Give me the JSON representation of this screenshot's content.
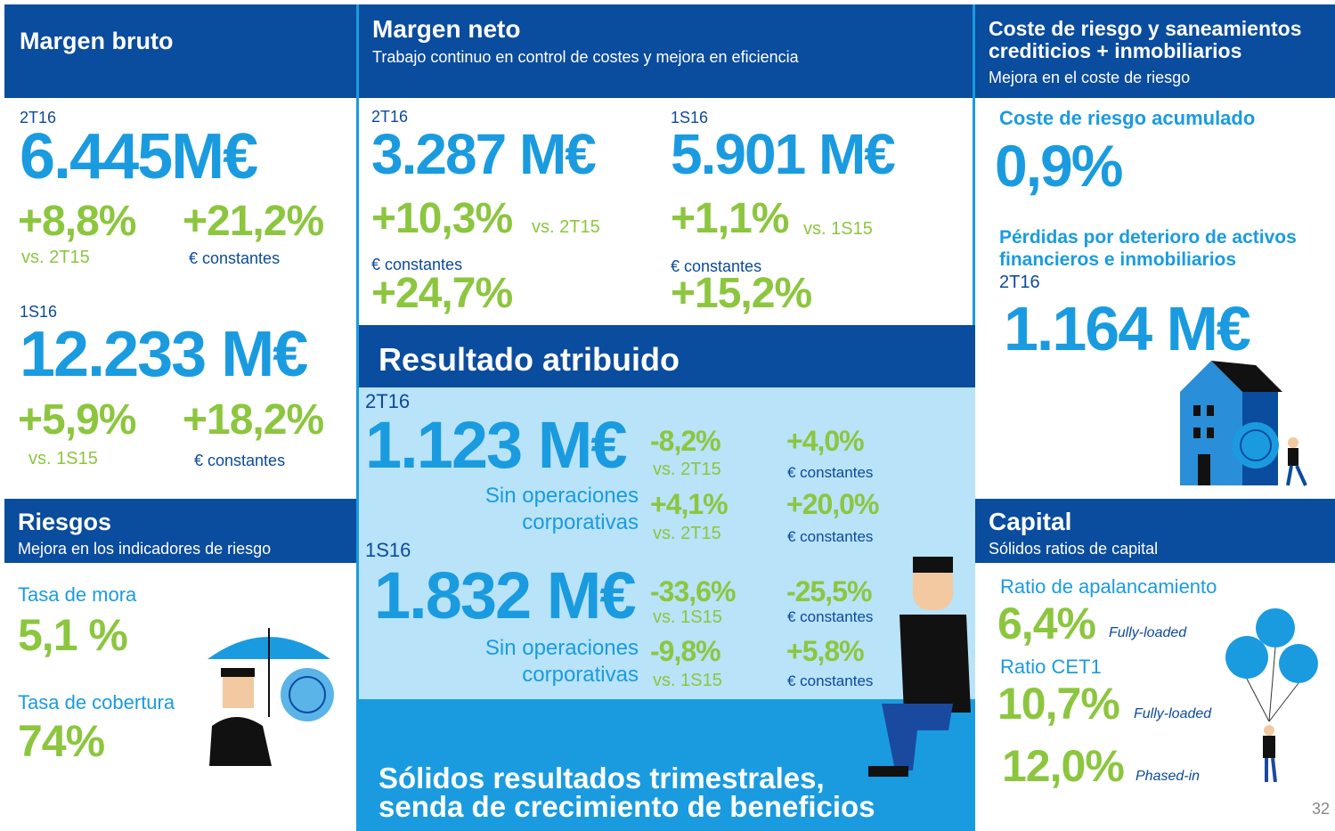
{
  "margen_bruto": {
    "title": "Margen bruto",
    "q_label": "2T16",
    "q_value": "6.445M€",
    "q_growth": "+8,8%",
    "q_vs": "vs. 2T15",
    "q_growth_const": "+21,2%",
    "q_const": "€ constantes",
    "h_label": "1S16",
    "h_value": "12.233 M€",
    "h_growth": "+5,9%",
    "h_vs": "vs. 1S15",
    "h_growth_const": "+18,2%",
    "h_const": "€ constantes"
  },
  "margen_neto": {
    "title": "Margen neto",
    "subtitle": "Trabajo continuo en control de costes y mejora en eficiencia",
    "q_label": "2T16",
    "q_value": "3.287 M€",
    "q_growth": "+10,3%",
    "q_vs": "vs. 2T15",
    "q_const": "€ constantes",
    "q_growth_const": "+24,7%",
    "h_label": "1S16",
    "h_value": "5.901 M€",
    "h_growth": "+1,1%",
    "h_vs": "vs. 1S15",
    "h_const": "€ constantes",
    "h_growth_const": "+15,2%"
  },
  "coste_riesgo": {
    "title": "Coste de riesgo y saneamientos crediticios + inmobiliarios",
    "subtitle": "Mejora en el coste de riesgo",
    "cor_label": "Coste de riesgo acumulado",
    "cor_value": "0,9%",
    "loss_label": "Pérdidas por deterioro de activos financieros e inmobiliarios",
    "loss_period": "2T16",
    "loss_value": "1.164 M€"
  },
  "resultado": {
    "title": "Resultado atribuido",
    "q_label": "2T16",
    "q_value": "1.123 M€",
    "q_growth": "-8,2%",
    "q_vs": "vs. 2T15",
    "q_growth_const": "+4,0%",
    "q_const": "€ constantes",
    "q_ex_label_1": "Sin operaciones",
    "q_ex_label_2": "corporativas",
    "q_ex_growth": "+4,1%",
    "q_ex_vs": "vs. 2T15",
    "q_ex_growth_const": "+20,0%",
    "q_ex_const": "€ constantes",
    "h_label": "1S16",
    "h_value": "1.832 M€",
    "h_growth": "-33,6%",
    "h_vs": "vs. 1S15",
    "h_growth_const": "-25,5%",
    "h_const": "€ constantes",
    "h_ex_label_1": "Sin operaciones",
    "h_ex_label_2": "corporativas",
    "h_ex_growth": "-9,8%",
    "h_ex_vs": "vs. 1S15",
    "h_ex_growth_const": "+5,8%",
    "h_ex_const": "€ constantes",
    "footer_1": "Sólidos resultados trimestrales,",
    "footer_2": "senda de crecimiento de beneficios"
  },
  "riesgos": {
    "title": "Riesgos",
    "subtitle": "Mejora en los indicadores de riesgo",
    "npl_label": "Tasa de mora",
    "npl_value": "5,1 %",
    "coverage_label": "Tasa de cobertura",
    "coverage_value": "74%"
  },
  "capital": {
    "title": "Capital",
    "subtitle": "Sólidos ratios de capital",
    "leverage_label": "Ratio de apalancamiento",
    "leverage_value": "6,4%",
    "leverage_note": "Fully-loaded",
    "cet1_label": "Ratio CET1",
    "cet1_fl_value": "10,7%",
    "cet1_fl_note": "Fully-loaded",
    "cet1_pi_value": "12,0%",
    "cet1_pi_note": "Phased-in"
  },
  "page_number": "32"
}
